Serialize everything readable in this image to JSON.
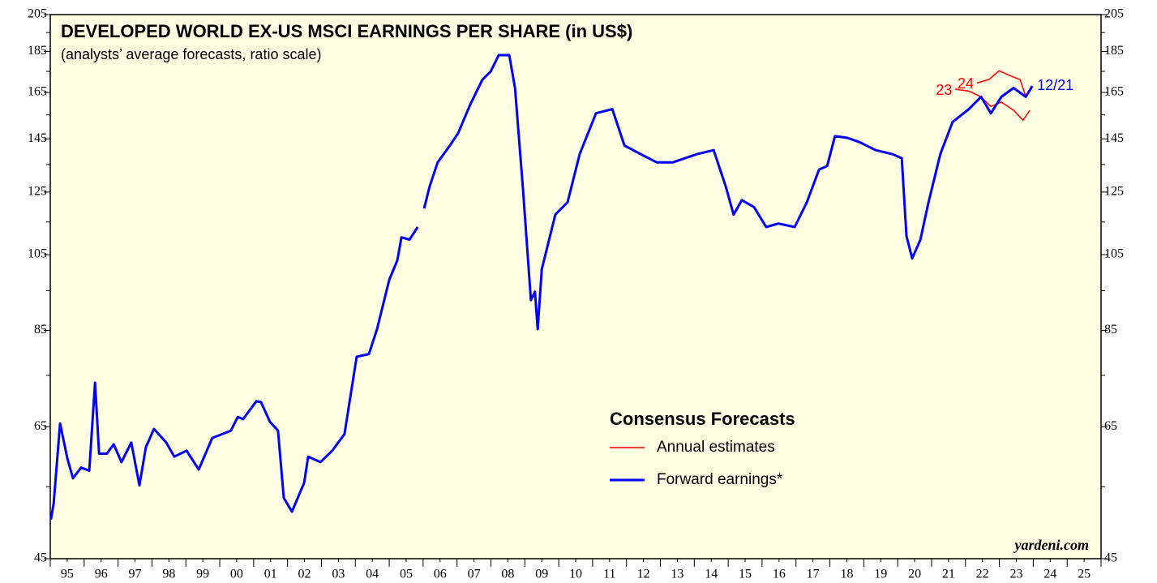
{
  "chart_data": {
    "type": "line",
    "title": "DEVELOPED WORLD EX-US MSCI EARNINGS PER SHARE (in US$)",
    "subtitle": "(analysts’ average forecasts, ratio scale)",
    "log_scale": true,
    "ylim": [
      45,
      205
    ],
    "yticks": [
      45,
      65,
      85,
      105,
      125,
      145,
      165,
      185,
      205
    ],
    "yminor_ticks": [
      55,
      75,
      95,
      115,
      135,
      155,
      175,
      195
    ],
    "xlim": [
      1995,
      2026
    ],
    "xticks": [
      1995,
      1996,
      1997,
      1998,
      1999,
      2000,
      2001,
      2002,
      2003,
      2004,
      2005,
      2006,
      2007,
      2008,
      2009,
      2010,
      2011,
      2012,
      2013,
      2014,
      2015,
      2016,
      2017,
      2018,
      2019,
      2020,
      2021,
      2022,
      2023,
      2024,
      2025,
      2026
    ],
    "xtick_labels": [
      {
        "value": 1995.5,
        "label": "95"
      },
      {
        "value": 1996.5,
        "label": "96"
      },
      {
        "value": 1997.5,
        "label": "97"
      },
      {
        "value": 1998.5,
        "label": "98"
      },
      {
        "value": 1999.5,
        "label": "99"
      },
      {
        "value": 2000.5,
        "label": "00"
      },
      {
        "value": 2001.5,
        "label": "01"
      },
      {
        "value": 2002.5,
        "label": "02"
      },
      {
        "value": 2003.5,
        "label": "03"
      },
      {
        "value": 2004.5,
        "label": "04"
      },
      {
        "value": 2005.5,
        "label": "05"
      },
      {
        "value": 2006.5,
        "label": "06"
      },
      {
        "value": 2007.5,
        "label": "07"
      },
      {
        "value": 2008.5,
        "label": "08"
      },
      {
        "value": 2009.5,
        "label": "09"
      },
      {
        "value": 2010.5,
        "label": "10"
      },
      {
        "value": 2011.5,
        "label": "11"
      },
      {
        "value": 2012.5,
        "label": "12"
      },
      {
        "value": 2013.5,
        "label": "13"
      },
      {
        "value": 2014.5,
        "label": "14"
      },
      {
        "value": 2015.5,
        "label": "15"
      },
      {
        "value": 2016.5,
        "label": "16"
      },
      {
        "value": 2017.5,
        "label": "17"
      },
      {
        "value": 2018.5,
        "label": "18"
      },
      {
        "value": 2019.5,
        "label": "19"
      },
      {
        "value": 2020.5,
        "label": "20"
      },
      {
        "value": 2021.5,
        "label": "21"
      },
      {
        "value": 2022.5,
        "label": "22"
      },
      {
        "value": 2023.5,
        "label": "23"
      },
      {
        "value": 2024.5,
        "label": "24"
      },
      {
        "value": 2025.5,
        "label": "25"
      }
    ],
    "legend_title": "Consensus Forecasts",
    "series": [
      {
        "name": "Annual estimates",
        "color": "#ff0000",
        "lines": [
          {
            "label": "23",
            "x": [
              2021.7,
              2022.1,
              2022.46,
              2022.75,
              2023.06,
              2023.42,
              2023.7,
              2023.9
            ],
            "values": [
              166.5,
              165.6,
              163.0,
              158.7,
              160.6,
              157.0,
              152.7,
              157.0
            ]
          },
          {
            "label": "24",
            "x": [
              2022.34,
              2022.7,
              2022.99,
              2023.3,
              2023.61,
              2023.78,
              2023.94
            ],
            "values": [
              169.4,
              171.1,
              175.3,
              173.0,
              171.0,
              163.3,
              166.4
            ]
          }
        ]
      },
      {
        "name": "Forward earnings*",
        "color": "#0000ff",
        "end_label": "12/21",
        "x": [
          1995.02,
          1995.1,
          1995.29,
          1995.5,
          1995.67,
          1995.91,
          1996.15,
          1996.32,
          1996.44,
          1996.67,
          1996.87,
          1997.1,
          1997.39,
          1997.63,
          1997.82,
          1998.06,
          1998.42,
          1998.66,
          1999.02,
          1999.38,
          1999.78,
          2000.33,
          2000.53,
          2000.69,
          2001.08,
          2001.22,
          2001.48,
          2001.72,
          2001.89,
          2002.13,
          2002.49,
          2002.61,
          2002.97,
          2003.32,
          2003.68,
          2004.04,
          2004.4,
          2004.64,
          2005.0,
          2005.24,
          2005.36,
          2005.6,
          2005.84,
          2005.92,
          2006.03,
          2006.19,
          2006.43,
          2006.79,
          2007.03,
          2007.39,
          2007.75,
          2007.99,
          2008.23,
          2008.54,
          2008.71,
          2008.95,
          2009.18,
          2009.3,
          2009.38,
          2009.5,
          2009.9,
          2010.26,
          2010.62,
          2011.1,
          2011.58,
          2011.94,
          2012.41,
          2012.89,
          2013.37,
          2013.73,
          2014.09,
          2014.57,
          2014.93,
          2015.16,
          2015.4,
          2015.76,
          2016.12,
          2016.48,
          2016.96,
          2017.32,
          2017.68,
          2017.92,
          2018.15,
          2018.51,
          2018.87,
          2019.35,
          2019.83,
          2020.12,
          2020.26,
          2020.43,
          2020.67,
          2020.91,
          2021.26,
          2021.62,
          2022.1,
          2022.46,
          2022.75,
          2023.06,
          2023.42,
          2023.78,
          2023.97
        ],
        "values": [
          50.2,
          52.5,
          65.6,
          59.6,
          56.3,
          58.0,
          57.5,
          73.5,
          60.3,
          60.3,
          61.9,
          58.9,
          62.2,
          55.2,
          61.4,
          64.6,
          62.2,
          59.8,
          60.8,
          57.7,
          63.0,
          64.3,
          66.8,
          66.4,
          69.8,
          69.6,
          65.9,
          64.3,
          53.3,
          51.3,
          55.6,
          59.8,
          58.9,
          60.8,
          63.7,
          79.0,
          79.6,
          85.3,
          97.9,
          103.4,
          110.2,
          109.5,
          113.4,
          null,
          119.4,
          126.9,
          135.8,
          142.3,
          147.2,
          159.6,
          171.0,
          174.9,
          183.1,
          183.1,
          167.1,
          125.4,
          92.5,
          94.7,
          85.3,
          100.8,
          117.4,
          121.5,
          139.0,
          155.7,
          157.5,
          142.3,
          139.0,
          135.8,
          135.8,
          137.4,
          139.0,
          140.5,
          126.9,
          117.4,
          122.2,
          119.9,
          113.4,
          114.5,
          113.4,
          121.5,
          133.1,
          134.4,
          146.1,
          145.4,
          143.7,
          140.5,
          139.0,
          137.4,
          110.6,
          103.9,
          109.5,
          121.5,
          139.0,
          152.0,
          157.5,
          163.0,
          155.7,
          163.0,
          167.1,
          163.0,
          168.0
        ]
      }
    ],
    "source": "yardeni.com"
  }
}
